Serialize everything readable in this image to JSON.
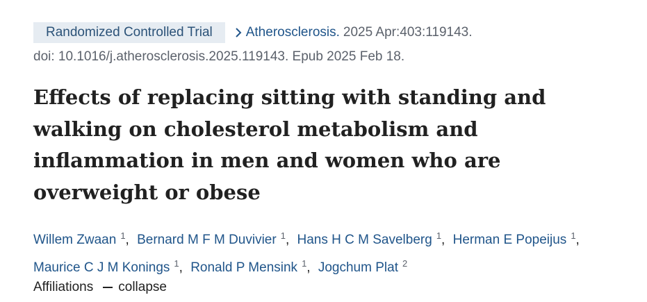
{
  "header": {
    "publication_type": "Randomized Controlled Trial",
    "journal": "Atherosclerosis.",
    "citation": "2025 Apr:403:119143.",
    "doi": "doi: 10.1016/j.atherosclerosis.2025.119143. Epub 2025 Feb 18."
  },
  "title": "Effects of replacing sitting with standing and walking on cholesterol metabolism and inflammation in men and women who are overweight or obese",
  "author_separator": ",",
  "authors": [
    {
      "name": "Willem Zwaan",
      "affiliation": "1"
    },
    {
      "name": "Bernard M F M Duvivier",
      "affiliation": "1"
    },
    {
      "name": "Hans H C M Savelberg",
      "affiliation": "1"
    },
    {
      "name": "Herman E Popeijus",
      "affiliation": "1"
    },
    {
      "name": "Maurice C J M Konings",
      "affiliation": "1"
    },
    {
      "name": "Ronald P Mensink",
      "affiliation": "1"
    },
    {
      "name": "Jogchum Plat",
      "affiliation": "2"
    }
  ],
  "affiliations": {
    "label": "Affiliations",
    "toggle": "collapse"
  }
}
